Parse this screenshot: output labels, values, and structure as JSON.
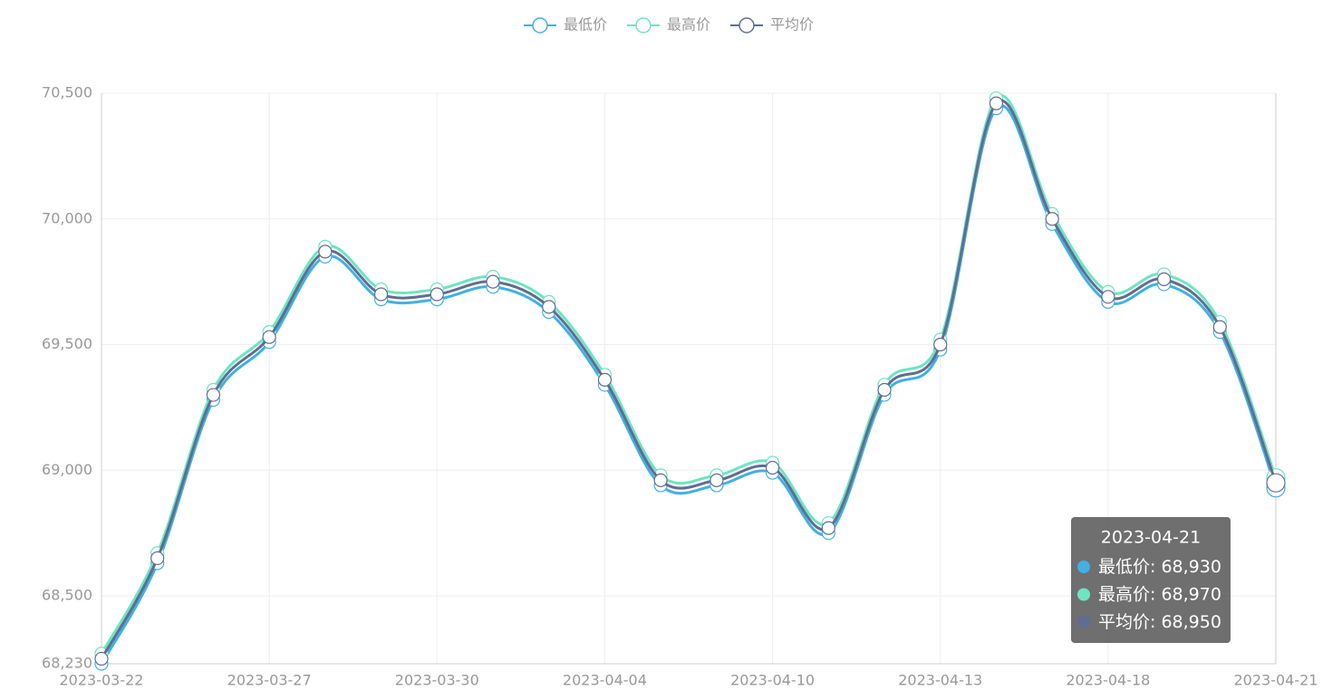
{
  "chart_data": {
    "type": "line",
    "categories": [
      "2023-03-22",
      null,
      null,
      "2023-03-27",
      null,
      null,
      "2023-03-30",
      null,
      null,
      "2023-04-04",
      null,
      null,
      "2023-04-10",
      null,
      null,
      "2023-04-13",
      null,
      null,
      "2023-04-18",
      null,
      null,
      "2023-04-21"
    ],
    "series": [
      {
        "name": "最低价",
        "color": "#3fb1e3",
        "values": [
          68230,
          68630,
          69280,
          69510,
          69850,
          69680,
          69680,
          69730,
          69630,
          69340,
          68940,
          68940,
          68990,
          68750,
          69300,
          69480,
          70440,
          69980,
          69670,
          69740,
          69550,
          68930
        ],
        "value_labels": [
          null,
          null,
          null,
          null,
          null,
          null,
          null,
          null,
          null,
          null,
          null,
          null,
          null,
          null,
          null,
          null,
          null,
          null,
          null,
          null,
          null,
          "68,930"
        ]
      },
      {
        "name": "最高价",
        "color": "#6be6c1",
        "values": [
          68270,
          68670,
          69320,
          69550,
          69890,
          69720,
          69720,
          69770,
          69670,
          69380,
          68980,
          68980,
          69030,
          68790,
          69340,
          69520,
          70480,
          70020,
          69710,
          69780,
          69590,
          68970
        ],
        "value_labels": [
          null,
          null,
          null,
          null,
          null,
          null,
          null,
          null,
          null,
          null,
          null,
          null,
          null,
          null,
          null,
          null,
          null,
          null,
          null,
          null,
          null,
          "68,970"
        ]
      },
      {
        "name": "平均价",
        "color": "#626c91",
        "values": [
          68250,
          68650,
          69300,
          69530,
          69870,
          69700,
          69700,
          69750,
          69650,
          69360,
          68960,
          68960,
          69010,
          68770,
          69320,
          69500,
          70460,
          70000,
          69690,
          69760,
          69570,
          68950
        ],
        "value_labels": [
          null,
          null,
          null,
          null,
          null,
          null,
          null,
          null,
          null,
          null,
          null,
          null,
          null,
          null,
          null,
          null,
          null,
          null,
          null,
          null,
          null,
          "68,950"
        ]
      }
    ],
    "ylim": [
      68230,
      70500
    ],
    "yticks": [
      {
        "value": 68230,
        "label": "68,230"
      },
      {
        "value": 68500,
        "label": "68,500"
      },
      {
        "value": 69000,
        "label": "69,000"
      },
      {
        "value": 69500,
        "label": "69,500"
      },
      {
        "value": 70000,
        "label": "70,000"
      },
      {
        "value": 70500,
        "label": "70,500"
      }
    ],
    "grid": true,
    "smooth": true,
    "legend": "top"
  }
}
